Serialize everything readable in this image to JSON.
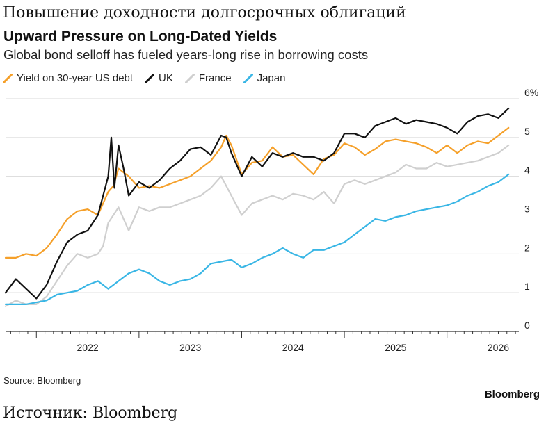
{
  "header": {
    "ru_title": "Повышение доходности долгосрочных облигаций",
    "title": "Upward Pressure on Long-Dated Yields",
    "subtitle": "Global bond selloff has fueled years-long rise in borrowing costs"
  },
  "footer": {
    "source": "Source: Bloomberg",
    "brand": "Bloomberg",
    "ru_source": "Источник: Bloomberg"
  },
  "chart_data": {
    "type": "line",
    "title": "Upward Pressure on Long-Dated Yields",
    "subtitle": "Global bond selloff has fueled years-long rise in borrowing costs",
    "xlabel": "",
    "ylabel": "",
    "xlim": [
      2021.7,
      2026.7
    ],
    "ylim": [
      0,
      6
    ],
    "y_ticks": [
      0,
      1,
      2,
      3,
      4,
      5,
      6
    ],
    "y_tick_labels": [
      "0",
      "1",
      "2",
      "3",
      "4",
      "5",
      "6%"
    ],
    "x_ticks": [
      2022,
      2023,
      2024,
      2025,
      2026
    ],
    "x_tick_labels": [
      "2022",
      "2023",
      "2024",
      "2025",
      "2026"
    ],
    "grid": "horizontal",
    "legend": "top-left",
    "series": [
      {
        "name": "Yield on 30-year US debt",
        "color": "#f5a02a",
        "x": [
          2021.7,
          2021.8,
          2021.9,
          2022.0,
          2022.1,
          2022.2,
          2022.3,
          2022.4,
          2022.5,
          2022.6,
          2022.7,
          2022.75,
          2022.8,
          2022.9,
          2023.0,
          2023.1,
          2023.2,
          2023.3,
          2023.4,
          2023.5,
          2023.6,
          2023.7,
          2023.8,
          2023.85,
          2023.9,
          2024.0,
          2024.1,
          2024.2,
          2024.3,
          2024.4,
          2024.5,
          2024.6,
          2024.7,
          2024.8,
          2024.9,
          2025.0,
          2025.1,
          2025.2,
          2025.3,
          2025.4,
          2025.5,
          2025.6,
          2025.7,
          2025.8,
          2025.9,
          2026.0,
          2026.1,
          2026.2,
          2026.3,
          2026.4,
          2026.5,
          2026.6
        ],
        "y": [
          1.9,
          1.9,
          2.0,
          1.95,
          2.15,
          2.5,
          2.9,
          3.1,
          3.15,
          3.0,
          3.6,
          3.75,
          4.2,
          4.0,
          3.7,
          3.75,
          3.7,
          3.8,
          3.9,
          4.0,
          4.2,
          4.4,
          4.75,
          5.05,
          4.8,
          4.05,
          4.35,
          4.4,
          4.75,
          4.5,
          4.55,
          4.3,
          4.05,
          4.45,
          4.55,
          4.85,
          4.75,
          4.55,
          4.7,
          4.9,
          4.95,
          4.9,
          4.85,
          4.75,
          4.6,
          4.8,
          4.6,
          4.8,
          4.9,
          4.85,
          5.05,
          5.25
        ]
      },
      {
        "name": "UK",
        "color": "#111111",
        "x": [
          2021.7,
          2021.8,
          2021.9,
          2022.0,
          2022.1,
          2022.2,
          2022.3,
          2022.4,
          2022.5,
          2022.6,
          2022.65,
          2022.7,
          2022.73,
          2022.76,
          2022.8,
          2022.85,
          2022.9,
          2023.0,
          2023.1,
          2023.2,
          2023.3,
          2023.4,
          2023.5,
          2023.6,
          2023.7,
          2023.8,
          2023.85,
          2023.9,
          2024.0,
          2024.1,
          2024.2,
          2024.3,
          2024.4,
          2024.5,
          2024.6,
          2024.7,
          2024.8,
          2024.9,
          2025.0,
          2025.1,
          2025.2,
          2025.3,
          2025.4,
          2025.5,
          2025.6,
          2025.7,
          2025.8,
          2025.9,
          2026.0,
          2026.1,
          2026.2,
          2026.3,
          2026.4,
          2026.5,
          2026.6
        ],
        "y": [
          1.0,
          1.35,
          1.1,
          0.85,
          1.2,
          1.8,
          2.3,
          2.5,
          2.6,
          3.0,
          3.5,
          4.0,
          5.0,
          3.7,
          4.8,
          4.2,
          3.5,
          3.85,
          3.7,
          3.9,
          4.2,
          4.4,
          4.7,
          4.75,
          4.55,
          5.05,
          5.0,
          4.6,
          4.0,
          4.5,
          4.25,
          4.6,
          4.5,
          4.6,
          4.5,
          4.5,
          4.4,
          4.6,
          5.1,
          5.1,
          5.0,
          5.3,
          5.4,
          5.5,
          5.35,
          5.45,
          5.4,
          5.35,
          5.25,
          5.1,
          5.4,
          5.55,
          5.6,
          5.5,
          5.75
        ]
      },
      {
        "name": "France",
        "color": "#cfcfcf",
        "x": [
          2021.7,
          2021.8,
          2021.9,
          2022.0,
          2022.1,
          2022.2,
          2022.3,
          2022.4,
          2022.5,
          2022.6,
          2022.65,
          2022.7,
          2022.8,
          2022.9,
          2023.0,
          2023.1,
          2023.2,
          2023.3,
          2023.4,
          2023.5,
          2023.6,
          2023.7,
          2023.8,
          2023.9,
          2024.0,
          2024.1,
          2024.2,
          2024.3,
          2024.4,
          2024.5,
          2024.6,
          2024.7,
          2024.8,
          2024.9,
          2025.0,
          2025.1,
          2025.2,
          2025.3,
          2025.4,
          2025.5,
          2025.6,
          2025.7,
          2025.8,
          2025.9,
          2026.0,
          2026.1,
          2026.2,
          2026.3,
          2026.4,
          2026.5,
          2026.6
        ],
        "y": [
          0.65,
          0.8,
          0.7,
          0.7,
          0.9,
          1.3,
          1.7,
          2.0,
          1.9,
          2.0,
          2.2,
          2.8,
          3.2,
          2.6,
          3.2,
          3.1,
          3.2,
          3.2,
          3.3,
          3.4,
          3.5,
          3.7,
          4.0,
          3.5,
          3.0,
          3.3,
          3.4,
          3.5,
          3.4,
          3.55,
          3.5,
          3.4,
          3.6,
          3.3,
          3.8,
          3.9,
          3.8,
          3.9,
          4.0,
          4.1,
          4.3,
          4.2,
          4.2,
          4.35,
          4.25,
          4.3,
          4.35,
          4.4,
          4.5,
          4.6,
          4.8
        ]
      },
      {
        "name": "Japan",
        "color": "#39b6e5",
        "x": [
          2021.7,
          2021.8,
          2021.9,
          2022.0,
          2022.1,
          2022.2,
          2022.3,
          2022.4,
          2022.5,
          2022.6,
          2022.7,
          2022.8,
          2022.9,
          2023.0,
          2023.1,
          2023.2,
          2023.3,
          2023.4,
          2023.5,
          2023.6,
          2023.7,
          2023.8,
          2023.9,
          2024.0,
          2024.1,
          2024.2,
          2024.3,
          2024.4,
          2024.5,
          2024.6,
          2024.7,
          2024.8,
          2024.9,
          2025.0,
          2025.1,
          2025.2,
          2025.3,
          2025.4,
          2025.5,
          2025.6,
          2025.7,
          2025.8,
          2025.9,
          2026.0,
          2026.1,
          2026.2,
          2026.3,
          2026.4,
          2026.5,
          2026.6
        ],
        "y": [
          0.7,
          0.7,
          0.7,
          0.75,
          0.8,
          0.95,
          1.0,
          1.05,
          1.2,
          1.3,
          1.1,
          1.3,
          1.5,
          1.6,
          1.5,
          1.3,
          1.2,
          1.3,
          1.35,
          1.5,
          1.75,
          1.8,
          1.85,
          1.65,
          1.75,
          1.9,
          2.0,
          2.15,
          2.0,
          1.9,
          2.1,
          2.1,
          2.2,
          2.3,
          2.5,
          2.7,
          2.9,
          2.85,
          2.95,
          3.0,
          3.1,
          3.15,
          3.2,
          3.25,
          3.35,
          3.5,
          3.6,
          3.75,
          3.85,
          4.05
        ]
      }
    ]
  }
}
